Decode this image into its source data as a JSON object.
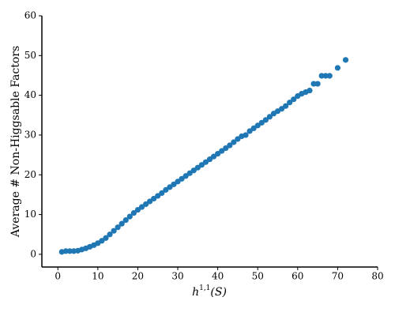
{
  "chart_data": {
    "type": "scatter",
    "xlabel": {
      "base": "h",
      "sup": "1,1",
      "rest": "(S)"
    },
    "ylabel": "Average # Non-Higgsable Factors",
    "color": "#1f77b4",
    "x": [
      1,
      2,
      3,
      4,
      5,
      6,
      7,
      8,
      9,
      10,
      11,
      12,
      13,
      14,
      15,
      16,
      17,
      18,
      19,
      20,
      21,
      22,
      23,
      24,
      25,
      26,
      27,
      28,
      29,
      30,
      31,
      32,
      33,
      34,
      35,
      36,
      37,
      38,
      39,
      40,
      41,
      42,
      43,
      44,
      45,
      46,
      47,
      48,
      49,
      50,
      51,
      52,
      53,
      54,
      55,
      56,
      57,
      58,
      59,
      60,
      61,
      62,
      63,
      64,
      65,
      66,
      67,
      68,
      70,
      72
    ],
    "values": [
      0.6,
      0.8,
      0.8,
      0.8,
      0.9,
      1.2,
      1.5,
      1.9,
      2.3,
      2.8,
      3.4,
      4.1,
      5.0,
      5.9,
      6.8,
      7.7,
      8.6,
      9.5,
      10.4,
      11.2,
      11.9,
      12.6,
      13.3,
      14.0,
      14.7,
      15.4,
      16.2,
      16.9,
      17.6,
      18.3,
      19.0,
      19.7,
      20.4,
      21.1,
      21.8,
      22.5,
      23.2,
      23.9,
      24.6,
      25.3,
      26.0,
      26.7,
      27.4,
      28.2,
      29.0,
      29.7,
      30.0,
      31.0,
      31.7,
      32.4,
      33.1,
      33.8,
      34.6,
      35.4,
      36.0,
      36.6,
      37.3,
      38.2,
      39.0,
      39.8,
      40.4,
      40.8,
      41.2,
      42.9,
      42.9,
      44.9,
      44.9,
      44.9,
      46.9,
      48.9
    ],
    "xlim": [
      -4,
      80
    ],
    "ylim": [
      -3.2,
      60
    ],
    "xticks": [
      0,
      10,
      20,
      30,
      40,
      50,
      60,
      70,
      80
    ],
    "yticks": [
      0,
      10,
      20,
      30,
      40,
      50,
      60
    ]
  }
}
